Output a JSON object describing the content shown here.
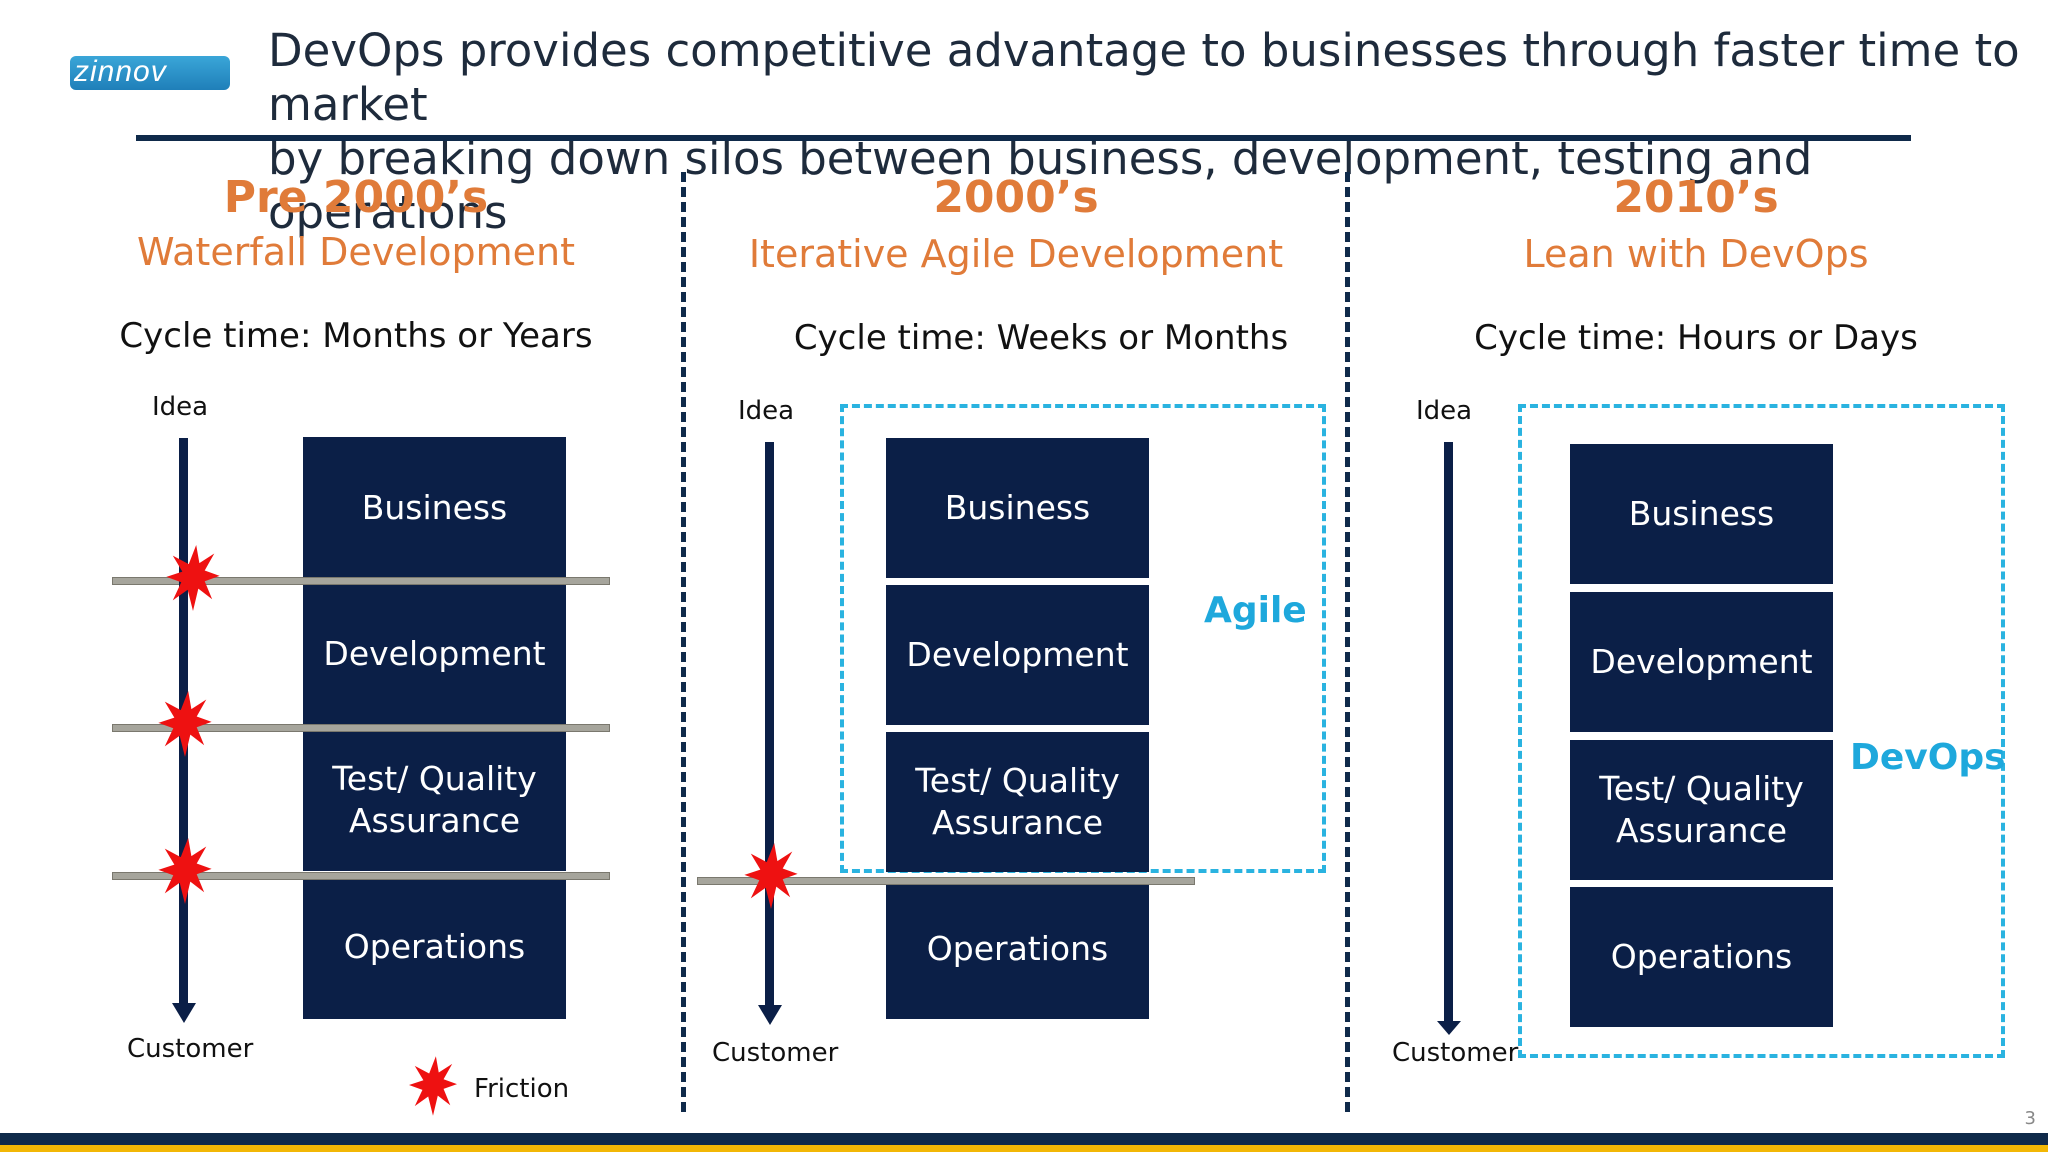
{
  "logo": {
    "text": "zinnov"
  },
  "header": {
    "line1": "DevOps provides competitive advantage to businesses through faster time to market",
    "line2": "by breaking down silos between business, development, testing and operations"
  },
  "columns": [
    {
      "era": "Pre 2000’s",
      "method": "Waterfall Development",
      "cycle": "Cycle time: Months or Years"
    },
    {
      "era": "2000’s",
      "method": "Iterative Agile Development",
      "cycle": "Cycle time: Weeks or Months"
    },
    {
      "era": "2010’s",
      "method": "Lean with DevOps",
      "cycle": "Cycle time: Hours or Days"
    }
  ],
  "labels": {
    "idea": "Idea",
    "customer": "Customer",
    "friction": "Friction",
    "agile": "Agile",
    "devops": "DevOps"
  },
  "stages": {
    "business": "Business",
    "development": "Development",
    "test_line1": "Test/ Quality",
    "test_line2": "Assurance",
    "operations": "Operations"
  },
  "colors": {
    "navy": "#0b1f47",
    "orange": "#e07b39",
    "cyan": "#1ea8dc",
    "friction": "#ee1111"
  },
  "page_number": "3"
}
